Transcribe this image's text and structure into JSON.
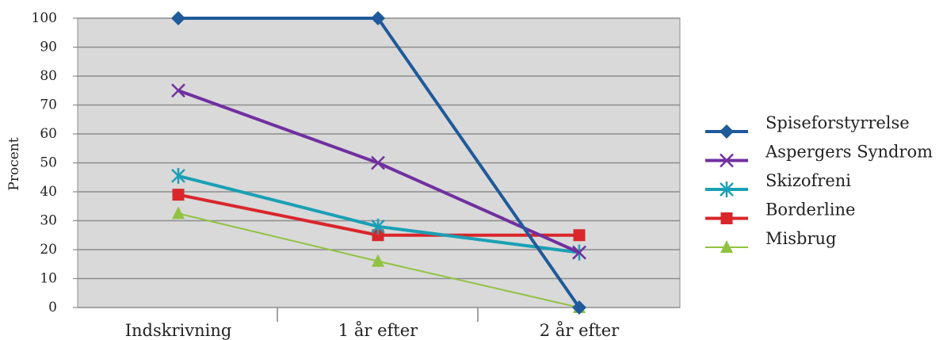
{
  "chart_data": {
    "type": "line",
    "ylabel": "Procent",
    "ylim": [
      0,
      100
    ],
    "yticks": [
      "100",
      "90",
      "80",
      "70",
      "60",
      "50",
      "40",
      "30",
      "20",
      "10",
      "0"
    ],
    "categories": [
      "Indskrivning",
      "1 år efter",
      "2 år efter"
    ],
    "grid": true,
    "legend_position": "right",
    "series": [
      {
        "name": "Spiseforstyrrelse",
        "values": [
          100,
          100,
          0
        ],
        "color": "#1f5a9a",
        "marker": "diamond",
        "width": 4
      },
      {
        "name": "Aspergers Syndrom",
        "values": [
          75,
          50,
          19
        ],
        "color": "#7030a0",
        "marker": "x",
        "width": 4
      },
      {
        "name": "Skizofreni",
        "values": [
          45.5,
          28,
          19
        ],
        "color": "#1aa0b5",
        "marker": "asterisk",
        "width": 4
      },
      {
        "name": "Borderline",
        "values": [
          39,
          25,
          25
        ],
        "color": "#d9262b",
        "marker": "square",
        "width": 4
      },
      {
        "name": "Misbrug",
        "values": [
          32.5,
          16,
          0
        ],
        "color": "#92c242",
        "marker": "triangle",
        "width": 2
      }
    ]
  }
}
